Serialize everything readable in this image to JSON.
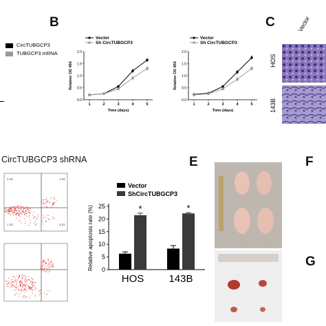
{
  "panel_labels": {
    "b": "B",
    "c": "C",
    "e": "E",
    "f": "F",
    "g": "G"
  },
  "panel_a_legend": [
    {
      "label": "CircTUBGCP3",
      "color": "#000000"
    },
    {
      "label": "TUBGCP3 mRNA",
      "color": "#9a9a9a"
    }
  ],
  "panel_d": {
    "title": "CircTUBGCP3 shRNA",
    "quadrant_values_top": [
      "2.49",
      "1.05",
      "5.51",
      "1.33"
    ]
  },
  "panel_c": {
    "col_label": "Vector",
    "row_labels": [
      "HOS",
      "143B"
    ]
  },
  "colors": {
    "vector": "#000000",
    "sh": "#9b9b9b",
    "bar_sh": "#3a3a3a",
    "cells": "#6b56a8"
  },
  "chart_data": [
    {
      "type": "line",
      "series": [
        {
          "name": "Vector",
          "values": [
            0.2,
            0.25,
            0.55,
            1.2,
            1.65
          ]
        },
        {
          "name": "Sh CircTUBGCP3",
          "values": [
            0.2,
            0.25,
            0.45,
            0.9,
            1.3
          ]
        }
      ],
      "x": [
        1,
        2,
        3,
        4,
        5
      ],
      "xlabel": "Time (days)",
      "ylabel": "Relative OD 450",
      "yticks": [
        0.0,
        0.5,
        1.0,
        1.5,
        2.0
      ],
      "ylim": [
        0,
        2.0
      ],
      "legend_position": "top-left"
    },
    {
      "type": "line",
      "series": [
        {
          "name": "Vector",
          "values": [
            0.22,
            0.27,
            0.55,
            1.15,
            1.75
          ]
        },
        {
          "name": "Sh CircTUBGCP3",
          "values": [
            0.2,
            0.25,
            0.45,
            0.85,
            1.3
          ]
        }
      ],
      "x": [
        1,
        2,
        3,
        4,
        5
      ],
      "xlabel": "Time (days)",
      "ylabel": "Relative OD 450",
      "yticks": [
        0.0,
        0.5,
        1.0,
        1.5,
        2.0
      ],
      "ylim": [
        0,
        2.0
      ],
      "legend_position": "top-left"
    },
    {
      "type": "bar",
      "categories": [
        "HOS",
        "143B"
      ],
      "series": [
        {
          "name": "Vector",
          "values": [
            6.3,
            8.3
          ],
          "errors": [
            0.7,
            1.2
          ]
        },
        {
          "name": "ShCircTUBGCP3",
          "values": [
            21.5,
            22.2
          ],
          "errors": [
            0.8,
            0.3
          ]
        }
      ],
      "ylabel": "Relative apoptosis rate (%)",
      "yticks": [
        0,
        5,
        10,
        15,
        20,
        25
      ],
      "ylim": [
        0,
        25
      ],
      "significance": "*",
      "legend_position": "top-left"
    }
  ]
}
